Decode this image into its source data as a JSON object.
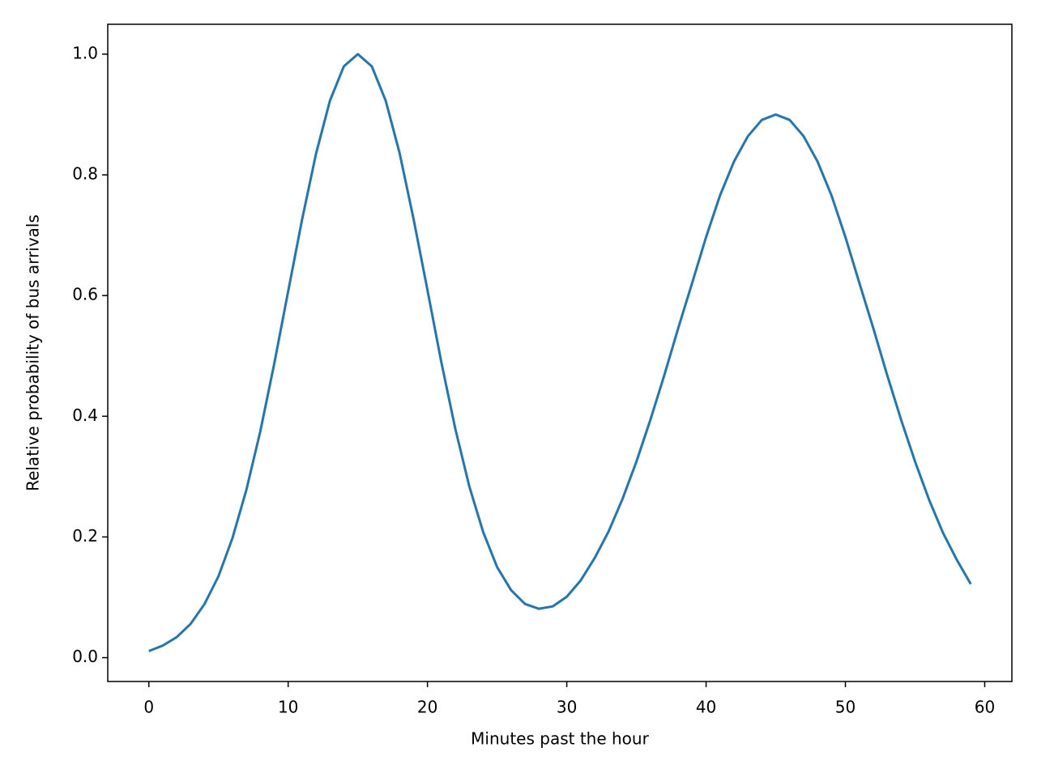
{
  "chart_data": {
    "type": "line",
    "xlabel": "Minutes past the hour",
    "ylabel": "Relative probability of bus arrivals",
    "x": [
      0,
      1,
      2,
      3,
      4,
      5,
      6,
      7,
      8,
      9,
      10,
      11,
      12,
      13,
      14,
      15,
      16,
      17,
      18,
      19,
      20,
      21,
      22,
      23,
      24,
      25,
      26,
      27,
      28,
      29,
      30,
      31,
      32,
      33,
      34,
      35,
      36,
      37,
      38,
      39,
      40,
      41,
      42,
      43,
      44,
      45,
      46,
      47,
      48,
      49,
      50,
      51,
      52,
      53,
      54,
      55,
      56,
      57,
      58,
      59
    ],
    "series": [
      {
        "color": "#1f77b4",
        "values": [
          0.011,
          0.02,
          0.034,
          0.056,
          0.089,
          0.135,
          0.198,
          0.278,
          0.375,
          0.487,
          0.607,
          0.726,
          0.835,
          0.923,
          0.98,
          1.0,
          0.98,
          0.923,
          0.836,
          0.727,
          0.609,
          0.489,
          0.379,
          0.284,
          0.208,
          0.15,
          0.112,
          0.089,
          0.081,
          0.085,
          0.101,
          0.128,
          0.165,
          0.209,
          0.263,
          0.325,
          0.394,
          0.468,
          0.546,
          0.621,
          0.697,
          0.766,
          0.822,
          0.864,
          0.891,
          0.9,
          0.891,
          0.864,
          0.822,
          0.766,
          0.697,
          0.621,
          0.546,
          0.468,
          0.394,
          0.325,
          0.262,
          0.207,
          0.162,
          0.122
        ]
      }
    ],
    "xlim": [
      -2.95,
      61.95
    ],
    "ylim": [
      -0.0395,
      1.0495
    ],
    "xticks": [
      0,
      10,
      20,
      30,
      40,
      50,
      60
    ],
    "yticks": [
      {
        "value": 0,
        "label": "0.0"
      },
      {
        "value": 0.2,
        "label": "0.2"
      },
      {
        "value": 0.4,
        "label": "0.4"
      },
      {
        "value": 0.6,
        "label": "0.6"
      },
      {
        "value": 0.8,
        "label": "0.8"
      },
      {
        "value": 1,
        "label": "1.0"
      }
    ]
  }
}
